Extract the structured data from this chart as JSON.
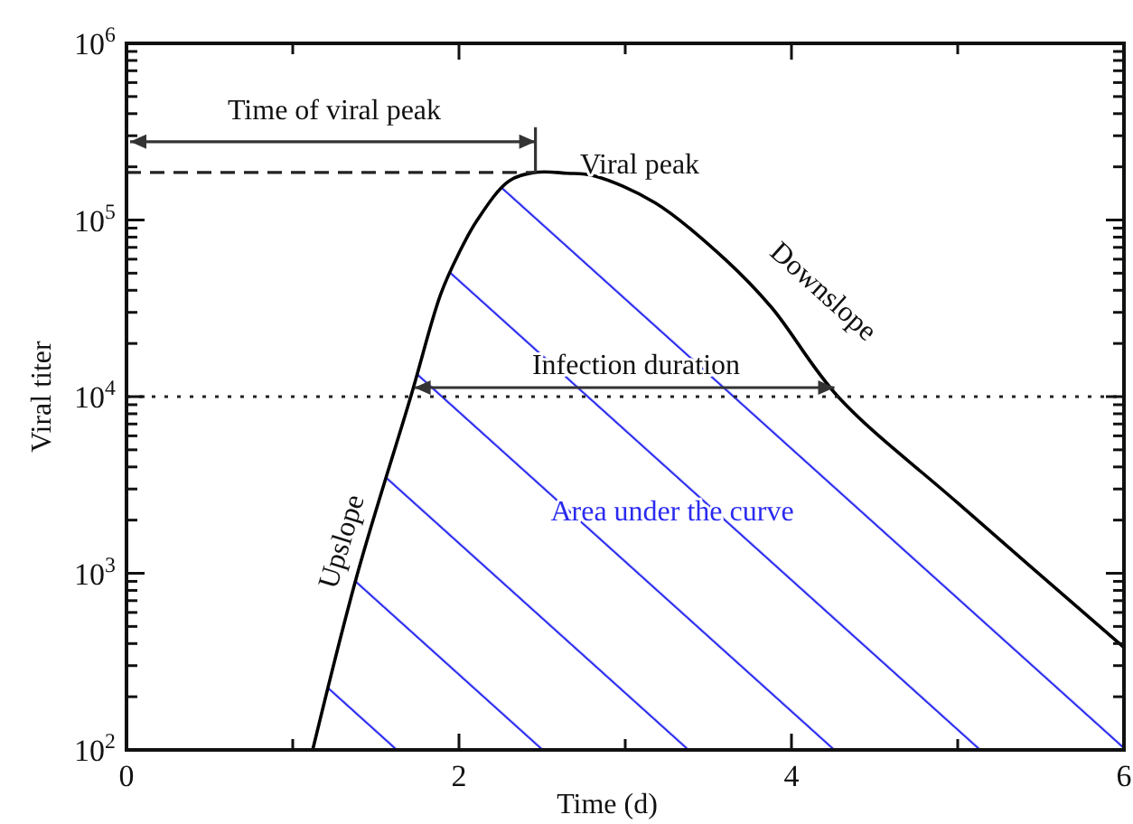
{
  "chart_data": {
    "type": "area",
    "xlabel": "Time (d)",
    "ylabel": "Viral titer",
    "log": "y",
    "x": [
      1.12,
      1.39,
      1.71,
      1.89,
      2.0,
      2.11,
      2.3,
      2.46,
      2.65,
      2.81,
      3.18,
      3.6,
      3.88,
      4.28,
      5,
      6
    ],
    "series": [
      {
        "color": "#000000",
        "values": [
          100,
          1000,
          10000,
          38000,
          65000,
          100000,
          166000,
          186000,
          184000,
          178000,
          125000,
          60000,
          32000,
          10000,
          2500,
          380
        ]
      }
    ],
    "xlim": [
      0,
      6
    ],
    "xticks": [
      0,
      {
        "value": 1,
        "label": null
      },
      2,
      {
        "value": 3,
        "label": null
      },
      4,
      {
        "value": 5,
        "label": null
      },
      6
    ],
    "ylim": [
      100,
      1000000
    ],
    "yticks": [
      {
        "value": 100,
        "label": "10$^{2}$"
      },
      {
        "value": 200,
        "label": null
      },
      {
        "value": 300,
        "label": null
      },
      {
        "value": 400,
        "label": null
      },
      {
        "value": 500,
        "label": null
      },
      {
        "value": 600,
        "label": null
      },
      {
        "value": 700,
        "label": null
      },
      {
        "value": 800,
        "label": null
      },
      {
        "value": 900,
        "label": null
      },
      {
        "value": 1000,
        "label": "10$^{3}$"
      },
      {
        "value": 2000,
        "label": null
      },
      {
        "value": 3000,
        "label": null
      },
      {
        "value": 4000,
        "label": null
      },
      {
        "value": 5000,
        "label": null
      },
      {
        "value": 6000,
        "label": null
      },
      {
        "value": 7000,
        "label": null
      },
      {
        "value": 8000,
        "label": null
      },
      {
        "value": 9000,
        "label": null
      },
      {
        "value": 10000,
        "label": "10$^{4}$"
      },
      {
        "value": 20000,
        "label": null
      },
      {
        "value": 30000,
        "label": null
      },
      {
        "value": 40000,
        "label": null
      },
      {
        "value": 50000,
        "label": null
      },
      {
        "value": 60000,
        "label": null
      },
      {
        "value": 70000,
        "label": null
      },
      {
        "value": 80000,
        "label": null
      },
      {
        "value": 90000,
        "label": null
      },
      {
        "value": 100000,
        "label": "10$^{5}$"
      },
      {
        "value": 200000,
        "label": null
      },
      {
        "value": 300000,
        "label": null
      },
      {
        "value": 400000,
        "label": null
      },
      {
        "value": 500000,
        "label": null
      },
      {
        "value": 600000,
        "label": null
      },
      {
        "value": 700000,
        "label": null
      },
      {
        "value": 800000,
        "label": null
      },
      {
        "value": 900000,
        "label": null
      },
      {
        "value": 1000000,
        "label": "10$^{6}$"
      }
    ],
    "ref_lines": [
      {
        "axis": "y",
        "value": 186000,
        "line_style": "dashed"
      },
      {
        "axis": "y",
        "value": 10000,
        "line_style": "dotted"
      }
    ],
    "annotations": [
      "Time of viral peak",
      "Viral peak",
      "Infection duration",
      "Upslope",
      "Downslope",
      "Area under the curve"
    ],
    "grid": false
  }
}
